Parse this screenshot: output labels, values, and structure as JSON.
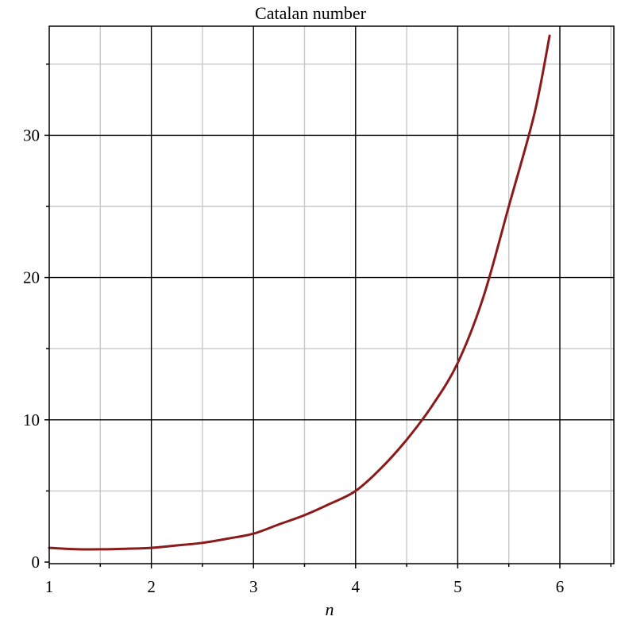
{
  "chart_data": {
    "type": "line",
    "title": "Catalan number",
    "xlabel": "n",
    "ylabel": "",
    "xlim": [
      1,
      6.55
    ],
    "ylim": [
      0,
      37.5
    ],
    "x_major_ticks": [
      1,
      2,
      3,
      4,
      5,
      6
    ],
    "x_minor_ticks": [
      1.5,
      2.5,
      3.5,
      4.5,
      5.5,
      6.5
    ],
    "y_major_ticks": [
      0,
      10,
      20,
      30
    ],
    "y_minor_ticks": [
      5,
      15,
      25,
      35
    ],
    "x_tick_labels": [
      "1",
      "2",
      "3",
      "4",
      "5",
      "6"
    ],
    "y_tick_labels": [
      "0",
      "10",
      "20",
      "30"
    ],
    "grid": true,
    "series": [
      {
        "x": [
          1,
          1.25,
          1.5,
          1.75,
          2,
          2.25,
          2.5,
          2.75,
          3,
          3.25,
          3.5,
          3.75,
          4,
          4.25,
          4.5,
          4.75,
          5,
          5.25,
          5.5,
          5.75,
          5.9
        ],
        "y": [
          1,
          0.91,
          0.9,
          0.94,
          1,
          1.17,
          1.35,
          1.65,
          2,
          2.65,
          3.3,
          4.1,
          5,
          6.6,
          8.6,
          11,
          14,
          18.6,
          25,
          31.5,
          37
        ],
        "color": "#8b1a1a"
      }
    ]
  }
}
